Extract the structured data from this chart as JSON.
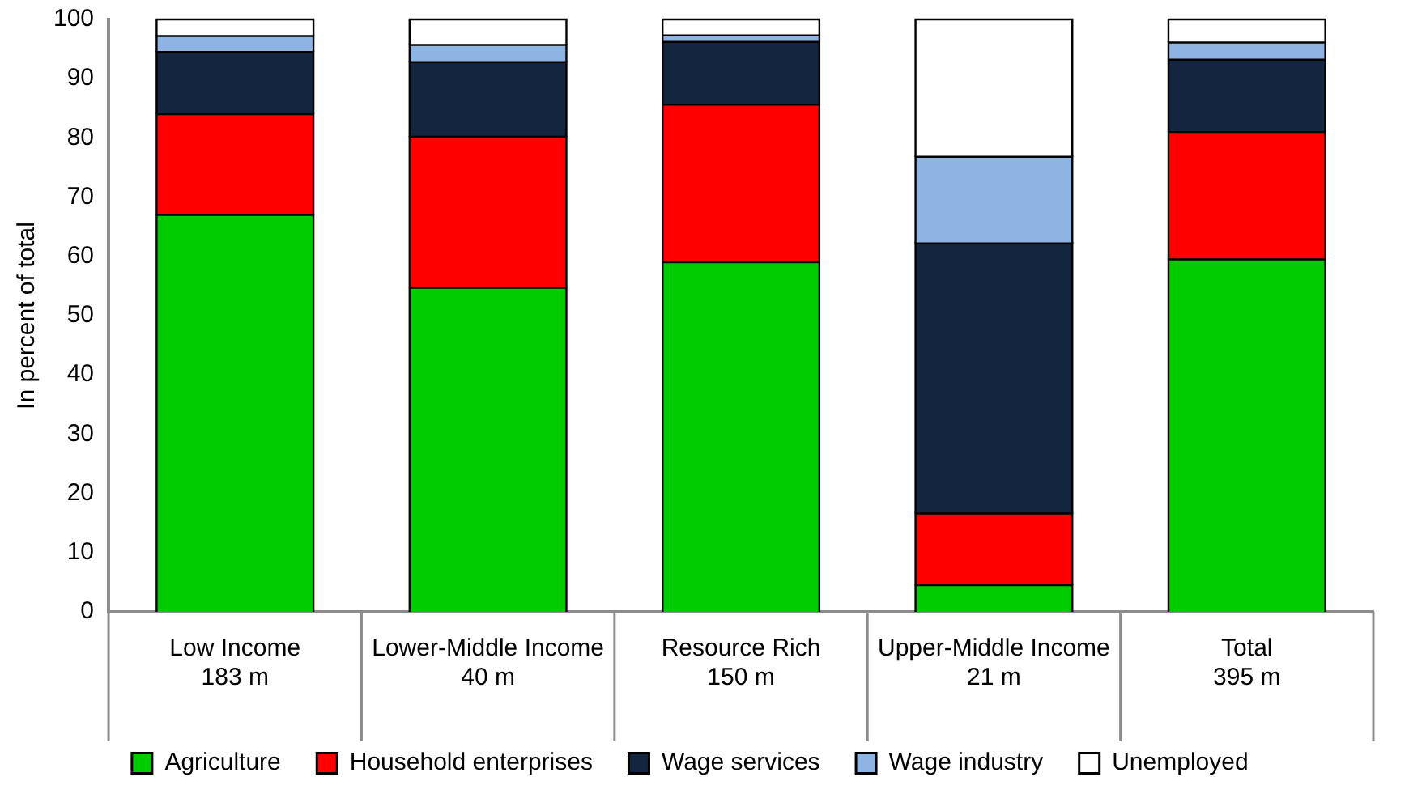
{
  "chart_data": {
    "type": "bar",
    "stacked": true,
    "ylabel": "In percent of total",
    "categories": [
      "Low Income\n183 m",
      "Lower-Middle Income\n40 m",
      "Resource Rich\n150 m",
      "Upper-Middle Income\n21 m",
      "Total\n395 m"
    ],
    "series": [
      {
        "name": "Agriculture",
        "color": "#00cc00",
        "values": [
          67,
          54.7,
          59,
          4.5,
          59.5
        ]
      },
      {
        "name": "Household enterprises",
        "color": "#ff0000",
        "values": [
          17,
          25.5,
          26.6,
          12.1,
          21.5
        ]
      },
      {
        "name": "Wage services",
        "color": "#13253f",
        "values": [
          10.5,
          12.6,
          10.6,
          45.6,
          12.2
        ]
      },
      {
        "name": "Wage industry",
        "color": "#8eb4e3",
        "values": [
          2.7,
          2.9,
          1.1,
          14.6,
          2.9
        ]
      },
      {
        "name": "Unemployed",
        "color": "#ffffff",
        "values": [
          2.8,
          4.3,
          2.7,
          23.2,
          3.9
        ]
      }
    ],
    "ylim": [
      0,
      100
    ],
    "yticks": [
      0,
      10,
      20,
      30,
      40,
      50,
      60,
      70,
      80,
      90,
      100
    ],
    "grid": false,
    "legend": "bottom"
  }
}
